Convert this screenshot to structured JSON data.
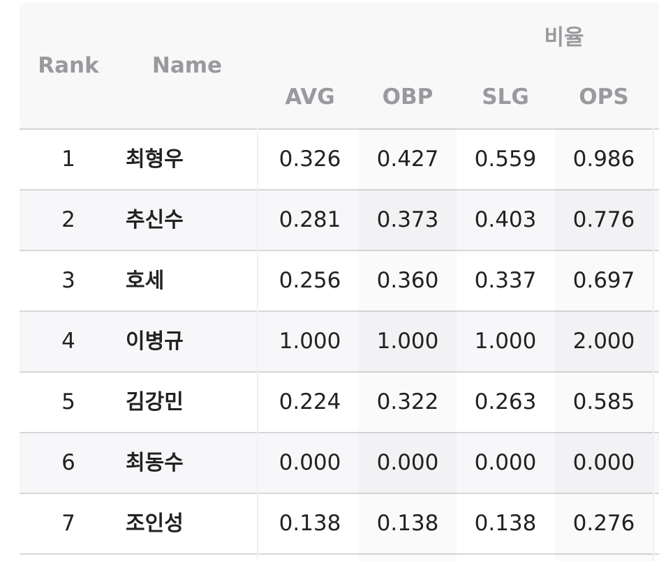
{
  "table": {
    "group_header": "비율",
    "headers": {
      "rank": "Rank",
      "name": "Name",
      "avg": "AVG",
      "obp": "OBP",
      "slg": "SLG",
      "ops": "OPS"
    },
    "rows": [
      {
        "rank": "1",
        "name": "최형우",
        "avg": "0.326",
        "obp": "0.427",
        "slg": "0.559",
        "ops": "0.986"
      },
      {
        "rank": "2",
        "name": "추신수",
        "avg": "0.281",
        "obp": "0.373",
        "slg": "0.403",
        "ops": "0.776"
      },
      {
        "rank": "3",
        "name": "호세",
        "avg": "0.256",
        "obp": "0.360",
        "slg": "0.337",
        "ops": "0.697"
      },
      {
        "rank": "4",
        "name": "이병규",
        "avg": "1.000",
        "obp": "1.000",
        "slg": "1.000",
        "ops": "2.000"
      },
      {
        "rank": "5",
        "name": "김강민",
        "avg": "0.224",
        "obp": "0.322",
        "slg": "0.263",
        "ops": "0.585"
      },
      {
        "rank": "6",
        "name": "최동수",
        "avg": "0.000",
        "obp": "0.000",
        "slg": "0.000",
        "ops": "0.000"
      },
      {
        "rank": "7",
        "name": "조인성",
        "avg": "0.138",
        "obp": "0.138",
        "slg": "0.138",
        "ops": "0.276"
      }
    ]
  }
}
